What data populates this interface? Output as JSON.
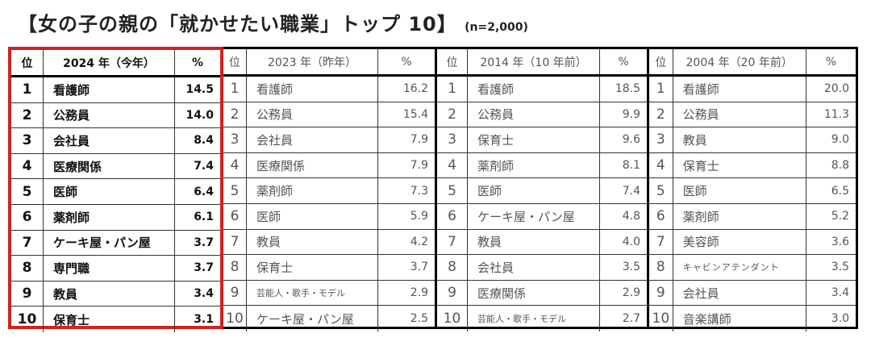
{
  "title": {
    "main": "【女の子の親の「就かせたい職業」トップ 10】",
    "sample": "(n=2,000)"
  },
  "columns": {
    "rank_label": "位",
    "pct_label": "%"
  },
  "groups": [
    {
      "header": "2024 年（今年）",
      "highlight_color": "#d42020",
      "rows": [
        {
          "rank": "1",
          "job": "看護師",
          "pct": "14.5"
        },
        {
          "rank": "2",
          "job": "公務員",
          "pct": "14.0"
        },
        {
          "rank": "3",
          "job": "会社員",
          "pct": "8.4"
        },
        {
          "rank": "4",
          "job": "医療関係",
          "pct": "7.4"
        },
        {
          "rank": "5",
          "job": "医師",
          "pct": "6.4"
        },
        {
          "rank": "6",
          "job": "薬剤師",
          "pct": "6.1"
        },
        {
          "rank": "7",
          "job": "ケーキ屋・パン屋",
          "pct": "3.7"
        },
        {
          "rank": "8",
          "job": "専門職",
          "pct": "3.7"
        },
        {
          "rank": "9",
          "job": "教員",
          "pct": "3.4"
        },
        {
          "rank": "10",
          "job": "保育士",
          "pct": "3.1"
        }
      ]
    },
    {
      "header": "2023 年（昨年）",
      "rows": [
        {
          "rank": "1",
          "job": "看護師",
          "pct": "16.2"
        },
        {
          "rank": "2",
          "job": "公務員",
          "pct": "15.4"
        },
        {
          "rank": "3",
          "job": "会社員",
          "pct": "7.9"
        },
        {
          "rank": "4",
          "job": "医療関係",
          "pct": "7.9"
        },
        {
          "rank": "5",
          "job": "薬剤師",
          "pct": "7.3"
        },
        {
          "rank": "6",
          "job": "医師",
          "pct": "5.9"
        },
        {
          "rank": "7",
          "job": "教員",
          "pct": "4.2"
        },
        {
          "rank": "8",
          "job": "保育士",
          "pct": "3.7"
        },
        {
          "rank": "9",
          "job": "芸能人・歌手・モデル",
          "pct": "2.9"
        },
        {
          "rank": "10",
          "job": "ケーキ屋・パン屋",
          "pct": "2.5"
        }
      ]
    },
    {
      "header": "2014 年（10 年前）",
      "rows": [
        {
          "rank": "1",
          "job": "看護師",
          "pct": "18.5"
        },
        {
          "rank": "2",
          "job": "公務員",
          "pct": "9.9"
        },
        {
          "rank": "3",
          "job": "保育士",
          "pct": "9.6"
        },
        {
          "rank": "4",
          "job": "薬剤師",
          "pct": "8.1"
        },
        {
          "rank": "5",
          "job": "医師",
          "pct": "7.4"
        },
        {
          "rank": "6",
          "job": "ケーキ屋・パン屋",
          "pct": "4.8"
        },
        {
          "rank": "7",
          "job": "教員",
          "pct": "4.0"
        },
        {
          "rank": "8",
          "job": "会社員",
          "pct": "3.5"
        },
        {
          "rank": "9",
          "job": "医療関係",
          "pct": "2.9"
        },
        {
          "rank": "10",
          "job": "芸能人・歌手・モデル",
          "pct": "2.7"
        }
      ]
    },
    {
      "header": "2004 年（20 年前）",
      "rows": [
        {
          "rank": "1",
          "job": "看護師",
          "pct": "20.0"
        },
        {
          "rank": "2",
          "job": "公務員",
          "pct": "11.3"
        },
        {
          "rank": "3",
          "job": "教員",
          "pct": "9.0"
        },
        {
          "rank": "4",
          "job": "保育士",
          "pct": "8.8"
        },
        {
          "rank": "5",
          "job": "医師",
          "pct": "6.5"
        },
        {
          "rank": "6",
          "job": "薬剤師",
          "pct": "5.2"
        },
        {
          "rank": "7",
          "job": "美容師",
          "pct": "3.6"
        },
        {
          "rank": "8",
          "job": "キャビンアテンダント",
          "pct": "3.5"
        },
        {
          "rank": "9",
          "job": "会社員",
          "pct": "3.4"
        },
        {
          "rank": "10",
          "job": "音楽講師",
          "pct": "3.0"
        }
      ]
    }
  ]
}
